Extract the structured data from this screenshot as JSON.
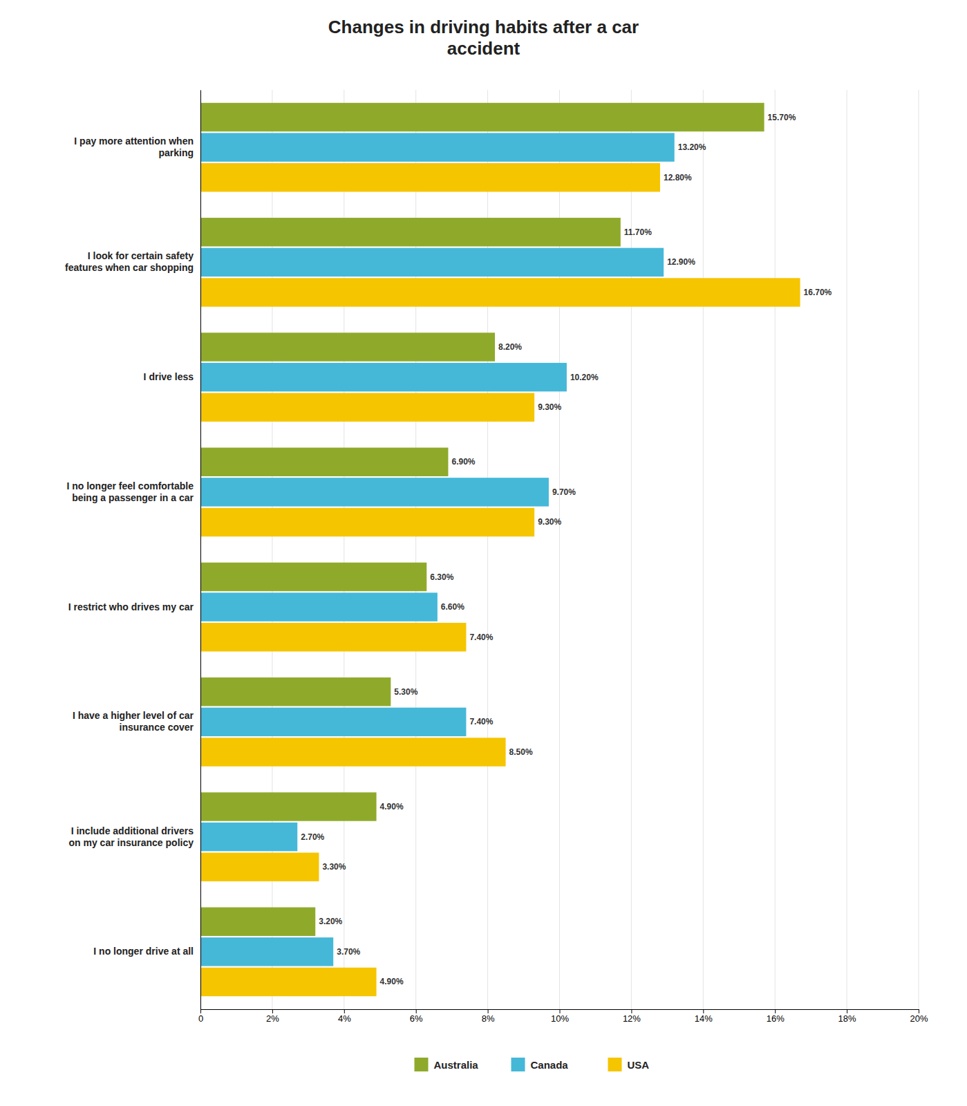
{
  "chart_data": {
    "type": "bar",
    "orientation": "horizontal",
    "title": "Changes in driving habits after a car\naccident",
    "categories": [
      "I pay more attention when\nparking",
      "I look for certain safety\nfeatures when car shopping",
      "I drive less",
      "I no longer feel comfortable\nbeing a passenger in a car",
      "I restrict who drives my car",
      "I have a higher level of car\ninsurance cover",
      "I include additional drivers\non my car insurance policy",
      "I no longer drive at all"
    ],
    "series": [
      {
        "name": "Australia",
        "color": "#8faa2b",
        "values": [
          15.7,
          11.7,
          8.2,
          6.9,
          6.3,
          5.3,
          4.9,
          3.2
        ],
        "value_labels": [
          "15.70%",
          "11.70%",
          "8.20%",
          "6.90%",
          "6.30%",
          "5.30%",
          "4.90%",
          "3.20%"
        ]
      },
      {
        "name": "Canada",
        "color": "#45b8d8",
        "values": [
          13.2,
          12.9,
          10.2,
          9.7,
          6.6,
          7.4,
          2.7,
          3.7
        ],
        "value_labels": [
          "13.20%",
          "12.90%",
          "10.20%",
          "9.70%",
          "6.60%",
          "7.40%",
          "2.70%",
          "3.70%"
        ]
      },
      {
        "name": "USA",
        "color": "#f5c500",
        "values": [
          12.8,
          16.7,
          9.3,
          9.3,
          7.4,
          8.5,
          3.3,
          4.9
        ],
        "value_labels": [
          "12.80%",
          "16.70%",
          "9.30%",
          "9.30%",
          "7.40%",
          "8.50%",
          "3.30%",
          "4.90%"
        ]
      }
    ],
    "xlim": [
      0,
      20
    ],
    "xticks": [
      0,
      {
        "value": 2,
        "label": "2%"
      },
      {
        "value": 4,
        "label": "4%"
      },
      {
        "value": 6,
        "label": "6%"
      },
      {
        "value": 8,
        "label": "8%"
      },
      {
        "value": 10,
        "label": "10%"
      },
      {
        "value": 12,
        "label": "12%"
      },
      {
        "value": 14,
        "label": "14%"
      },
      {
        "value": 16,
        "label": "16%"
      },
      {
        "value": 18,
        "label": "18%"
      },
      {
        "value": 20,
        "label": "20%"
      }
    ],
    "grid": true,
    "data_labels": true,
    "legend": "bottom"
  }
}
